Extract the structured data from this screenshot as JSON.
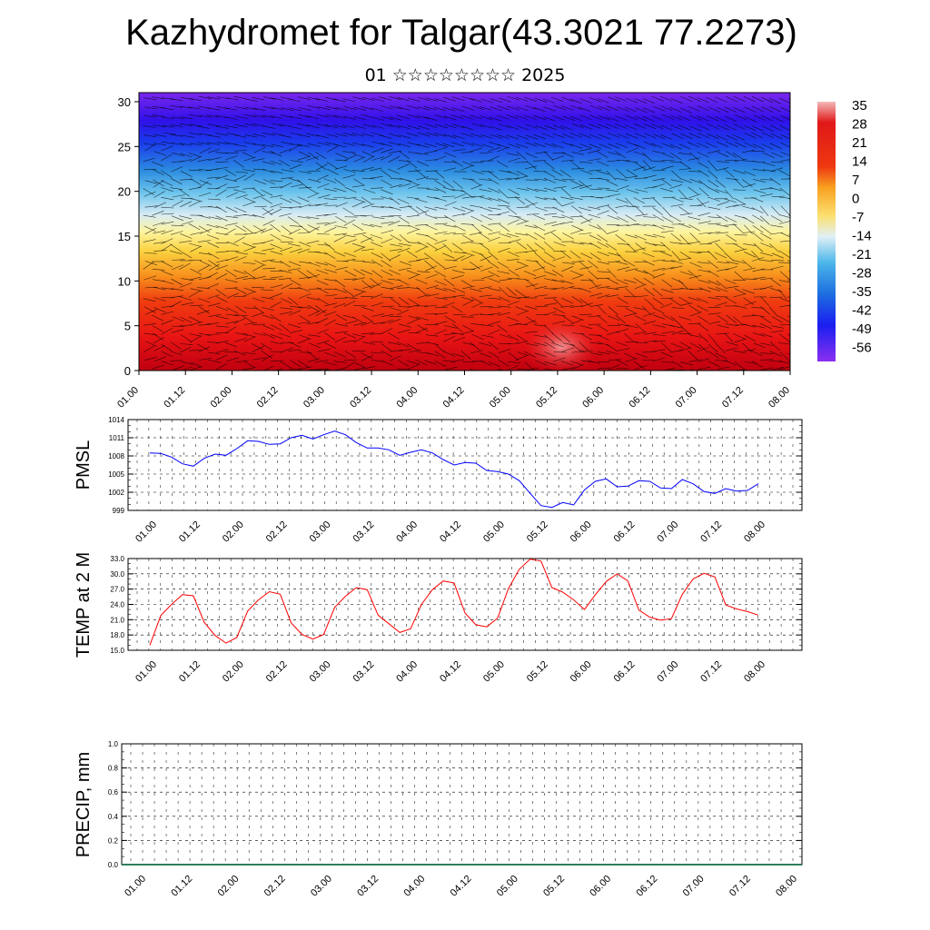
{
  "title": "Kazhydromet for Talgar(43.3021 77.2273)",
  "subtitle": "01 ☆☆☆☆☆☆☆☆ 2025",
  "time_ticks": [
    "01.00",
    "01.12",
    "02.00",
    "02.12",
    "03.00",
    "03.12",
    "04.00",
    "04.12",
    "05.00",
    "05.12",
    "06.00",
    "06.12",
    "07.00",
    "07.12",
    "08.00"
  ],
  "chart_data": [
    {
      "type": "heatmap",
      "name": "temperature-height-section",
      "ylim": [
        0,
        30
      ],
      "yticks": [
        0,
        5,
        10,
        15,
        20,
        25,
        30
      ],
      "colorbar": {
        "labels": [
          "35",
          "28",
          "21",
          "14",
          "7",
          "0",
          "-7",
          "-14",
          "-21",
          "-28",
          "-35",
          "-42",
          "-49",
          "-56"
        ],
        "range": [
          -63,
          42
        ]
      },
      "wind_barbs": true
    },
    {
      "type": "line",
      "ylabel": "PMSL",
      "ylim": [
        999,
        1014
      ],
      "ytick_labels": [
        "1014",
        "1011",
        "1008",
        "1005",
        "1002",
        "999"
      ],
      "color": "#0000ff",
      "values": [
        1008.5,
        1008.4,
        1007.8,
        1006.7,
        1006.3,
        1007.6,
        1008.3,
        1008.1,
        1009.2,
        1010.5,
        1010.4,
        1009.9,
        1010.0,
        1011.0,
        1011.4,
        1010.8,
        1011.5,
        1012.1,
        1011.5,
        1010.2,
        1009.3,
        1009.3,
        1009.0,
        1008.1,
        1008.6,
        1009.0,
        1008.5,
        1007.4,
        1006.5,
        1006.9,
        1006.8,
        1005.6,
        1005.4,
        1005.0,
        1003.9,
        1001.8,
        999.8,
        999.5,
        1000.3,
        999.9,
        1002.4,
        1003.8,
        1004.2,
        1002.9,
        1003.0,
        1003.9,
        1003.8,
        1002.7,
        1002.6,
        1004.1,
        1003.4,
        1002.1,
        1001.8,
        1002.6,
        1002.2,
        1002.3,
        1003.4
      ]
    },
    {
      "type": "line",
      "ylabel": "TEMP at 2 M",
      "ylim": [
        15,
        33
      ],
      "ytick_labels": [
        "33.0",
        "30.0",
        "27.0",
        "24.0",
        "21.0",
        "18.0",
        "15.0"
      ],
      "color": "#ff0000",
      "values": [
        16.0,
        21.8,
        24.0,
        25.9,
        25.7,
        20.5,
        17.9,
        16.4,
        17.5,
        22.7,
        24.9,
        26.5,
        26.0,
        20.4,
        18.1,
        17.2,
        18.1,
        23.4,
        25.6,
        27.3,
        26.9,
        21.9,
        20.2,
        18.5,
        19.2,
        24.0,
        26.9,
        28.6,
        28.2,
        22.3,
        20.0,
        19.6,
        21.3,
        27.1,
        30.9,
        32.9,
        32.5,
        27.3,
        26.4,
        24.9,
        23.0,
        25.9,
        28.5,
        30.0,
        28.6,
        22.9,
        21.5,
        20.9,
        21.2,
        26.0,
        29.0,
        30.1,
        29.4,
        23.9,
        23.1,
        22.6,
        21.9
      ]
    },
    {
      "type": "bar",
      "ylabel": "PRECIP, mm",
      "ylim": [
        0,
        1
      ],
      "ytick_labels": [
        "1.0",
        "0.8",
        "0.6",
        "0.4",
        "0.2",
        "0.0"
      ],
      "values": []
    }
  ]
}
